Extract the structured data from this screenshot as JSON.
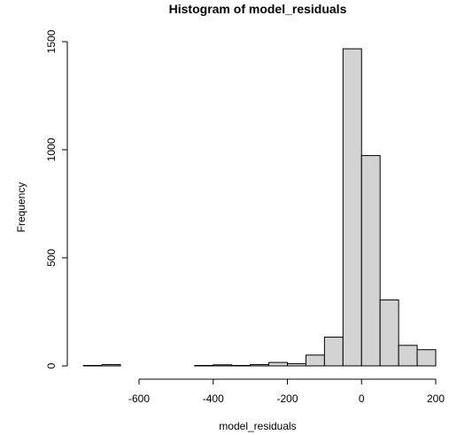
{
  "chart_data": {
    "type": "bar",
    "title": "Histogram of model_residuals",
    "xlabel": "model_residuals",
    "ylabel": "Frequency",
    "xlim": [
      -760,
      200
    ],
    "ylim": [
      0,
      1500
    ],
    "x_ticks": [
      -600,
      -400,
      -200,
      0,
      200
    ],
    "y_ticks": [
      0,
      500,
      1000,
      1500
    ],
    "bin_width": 50,
    "bins": [
      {
        "x0": -750,
        "x1": -700,
        "count": 2
      },
      {
        "x0": -700,
        "x1": -650,
        "count": 6
      },
      {
        "x0": -650,
        "x1": -600,
        "count": 0
      },
      {
        "x0": -600,
        "x1": -550,
        "count": 0
      },
      {
        "x0": -550,
        "x1": -500,
        "count": 0
      },
      {
        "x0": -500,
        "x1": -450,
        "count": 0
      },
      {
        "x0": -450,
        "x1": -400,
        "count": 2
      },
      {
        "x0": -400,
        "x1": -350,
        "count": 5
      },
      {
        "x0": -350,
        "x1": -300,
        "count": 2
      },
      {
        "x0": -300,
        "x1": -250,
        "count": 6
      },
      {
        "x0": -250,
        "x1": -200,
        "count": 16
      },
      {
        "x0": -200,
        "x1": -150,
        "count": 10
      },
      {
        "x0": -150,
        "x1": -100,
        "count": 50
      },
      {
        "x0": -100,
        "x1": -50,
        "count": 133
      },
      {
        "x0": -50,
        "x1": 0,
        "count": 1467
      },
      {
        "x0": 0,
        "x1": 50,
        "count": 973
      },
      {
        "x0": 50,
        "x1": 100,
        "count": 305
      },
      {
        "x0": 100,
        "x1": 150,
        "count": 95
      },
      {
        "x0": 150,
        "x1": 200,
        "count": 75
      }
    ],
    "bar_fill": "#d3d3d3",
    "bar_stroke": "#000000",
    "grid": false
  }
}
